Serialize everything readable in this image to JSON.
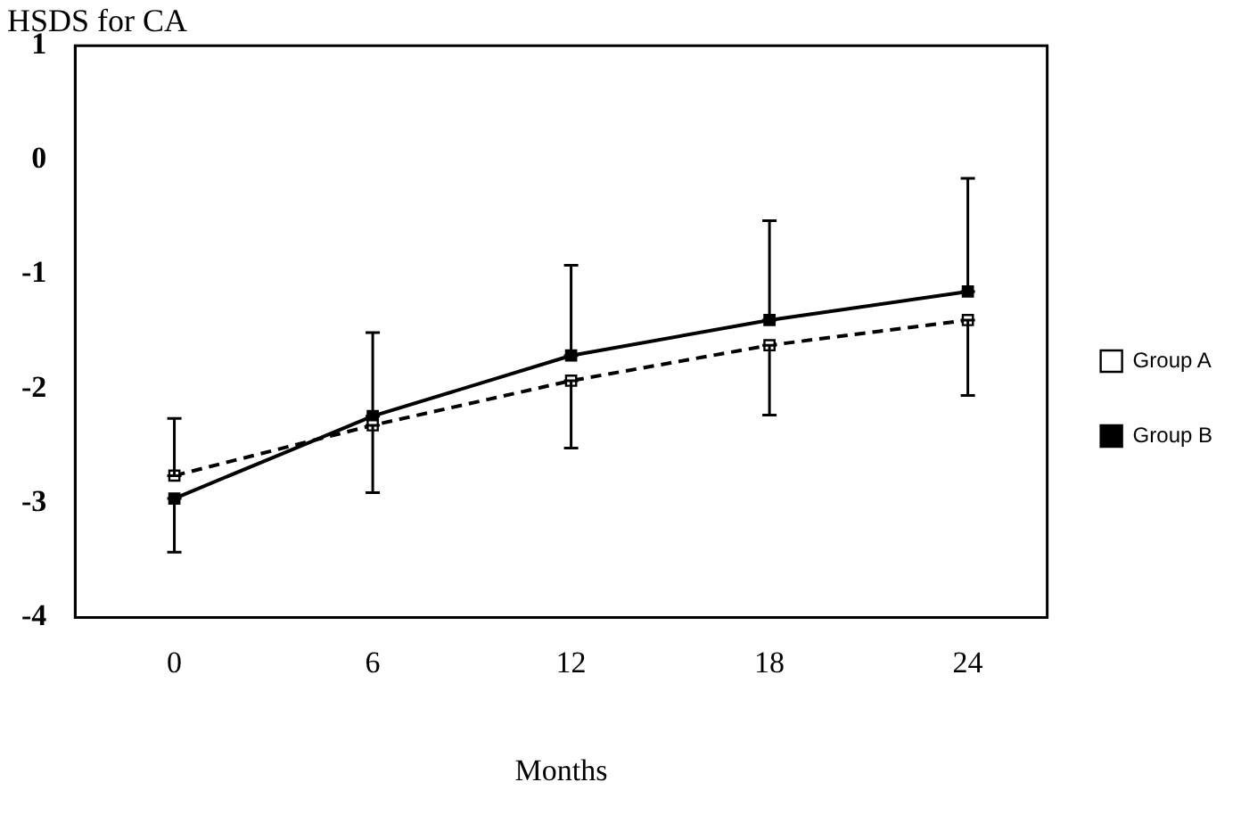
{
  "chart_data": {
    "type": "line",
    "title": "HSDS for CA",
    "xlabel": "Months",
    "x": [
      0,
      6,
      12,
      18,
      24
    ],
    "xlim": [
      -3,
      26.4
    ],
    "xticks": [
      0,
      6,
      12,
      18,
      24
    ],
    "ylim": [
      -4,
      1
    ],
    "yticks": [
      -4,
      -3,
      -2,
      -1,
      0,
      1
    ],
    "grid": false,
    "legend": "right",
    "marker": "square",
    "series": [
      {
        "name": "Group A",
        "color": "#000000",
        "line_style": "dashed",
        "values": [
          -2.76,
          -2.32,
          -1.93,
          -1.62,
          -1.4
        ],
        "errors": [
          [
            -2.76,
            -2.26
          ],
          [
            -2.91,
            -2.32
          ],
          [
            -2.52,
            -1.93
          ],
          [
            -2.23,
            -1.62
          ],
          [
            -2.06,
            -1.4
          ]
        ]
      },
      {
        "name": "Group B",
        "color": "#000000",
        "line_style": "solid",
        "values": [
          -2.96,
          -2.24,
          -1.71,
          -1.4,
          -1.15
        ],
        "errors": [
          [
            -3.43,
            -2.96
          ],
          [
            -2.24,
            -1.51
          ],
          [
            -1.71,
            -0.92
          ],
          [
            -1.4,
            -0.53
          ],
          [
            -1.15,
            -0.16
          ]
        ]
      }
    ]
  }
}
